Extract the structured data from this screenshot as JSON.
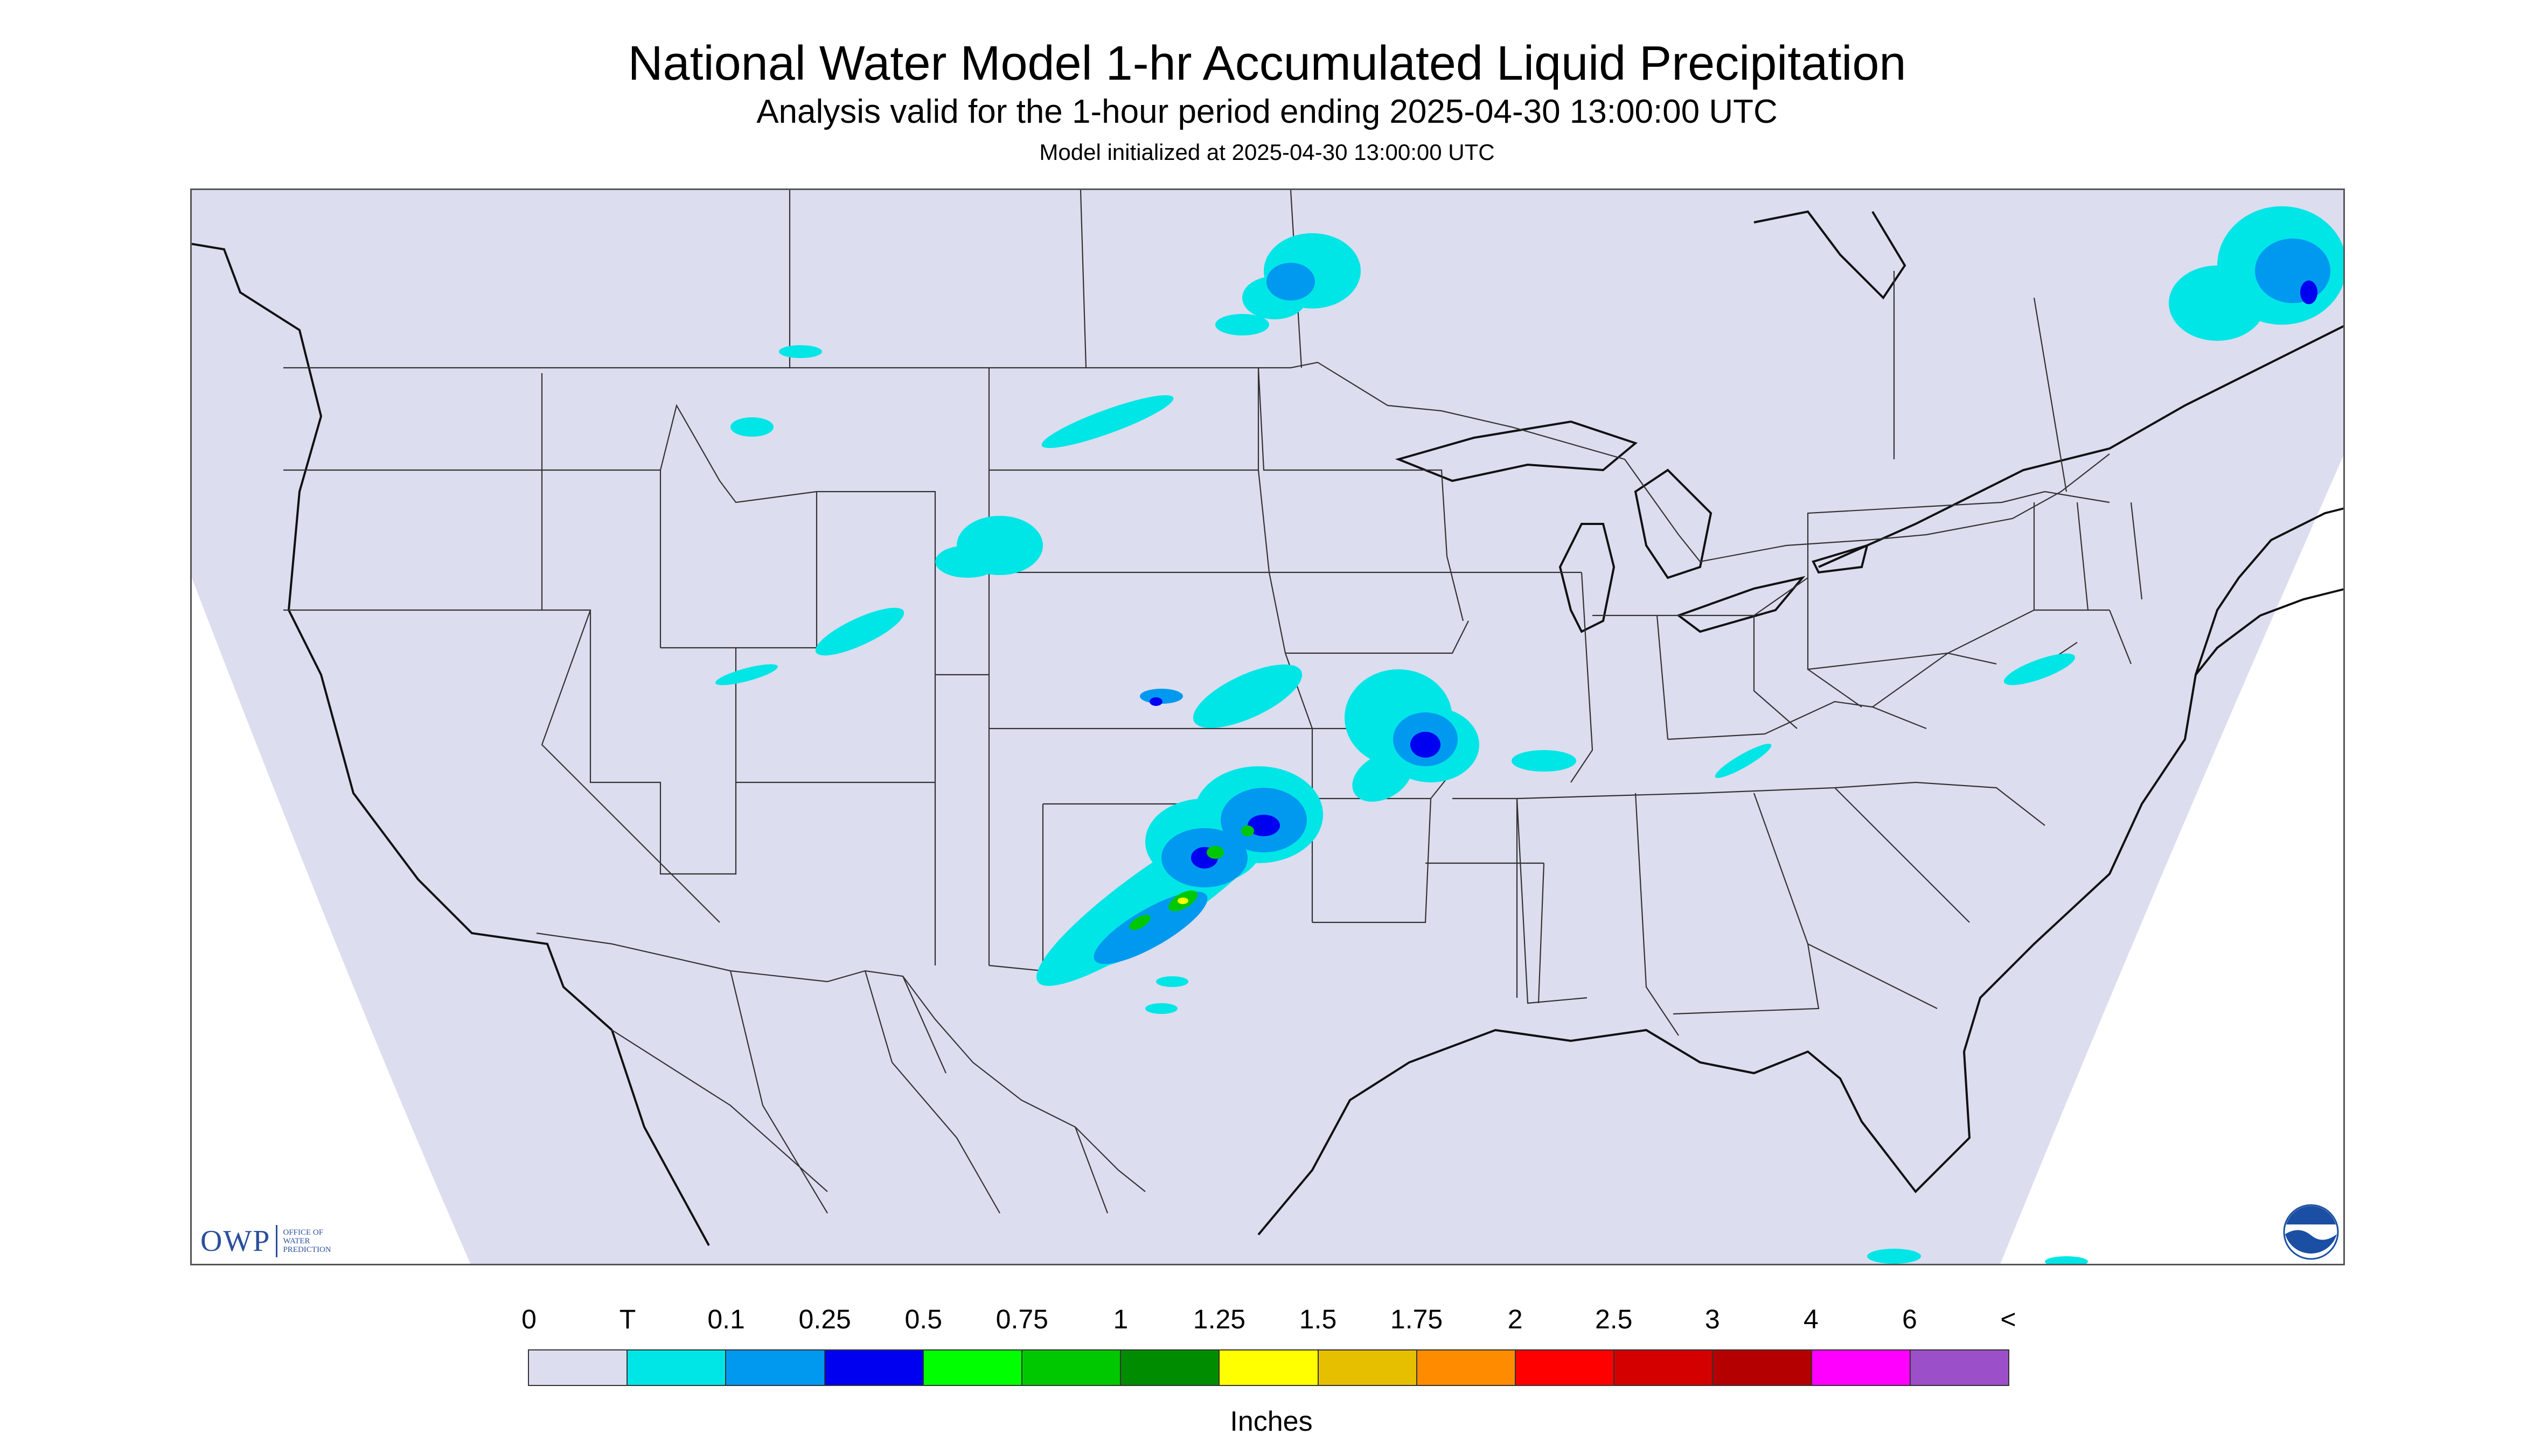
{
  "header": {
    "title": "National Water Model 1-hr Accumulated Liquid Precipitation",
    "subtitle": "Analysis valid for the 1-hour period ending 2025-04-30 13:00:00 UTC",
    "init": "Model initialized at 2025-04-30 13:00:00 UTC"
  },
  "map": {
    "background_color": "#dcddef",
    "outside_color": "#ffffff",
    "boundary_color": "#333333",
    "coast_color": "#111111"
  },
  "logos": {
    "owp_text": "OWP",
    "owp_sub": "OFFICE OF\nWATER\nPREDICTION",
    "owp_color": "#2b4f9c",
    "noaa_text": "NOAA",
    "noaa_color": "#1a4fa3"
  },
  "legend": {
    "units": "Inches",
    "labels": [
      "0",
      "T",
      "0.1",
      "0.25",
      "0.5",
      "0.75",
      "1",
      "1.25",
      "1.5",
      "1.75",
      "2",
      "2.5",
      "3",
      "4",
      "6",
      "<"
    ],
    "colors": [
      "#dcddef",
      "#00e6e6",
      "#0099f0",
      "#0000f0",
      "#00ff00",
      "#00c800",
      "#008c00",
      "#ffff00",
      "#e6c000",
      "#ff8c00",
      "#ff0000",
      "#d40000",
      "#b40000",
      "#ff00ff",
      "#9b4fc9"
    ]
  }
}
